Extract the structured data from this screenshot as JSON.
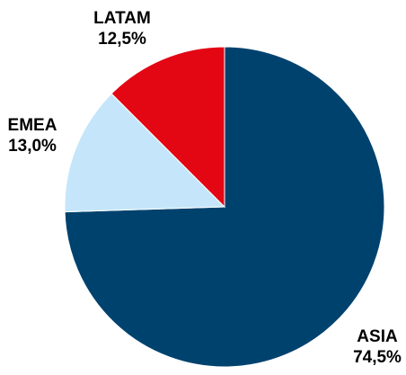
{
  "chart_data": {
    "type": "pie",
    "title": "",
    "slices": [
      {
        "label": "ASIA",
        "value": 74.5,
        "value_label": "74,5%",
        "color": "#00426E"
      },
      {
        "label": "EMEA",
        "value": 13.0,
        "value_label": "13,0%",
        "color": "#C5E6FA"
      },
      {
        "label": "LATAM",
        "value": 12.5,
        "value_label": "12,5%",
        "color": "#E30613"
      }
    ],
    "start_angle": "12 o'clock",
    "direction": "clockwise",
    "legend": "none",
    "labels_outside": true
  }
}
